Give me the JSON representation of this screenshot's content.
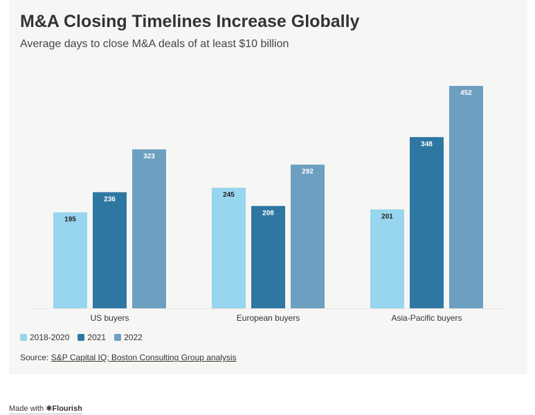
{
  "title": "M&A Closing Timelines Increase Globally",
  "subtitle": "Average days to close M&A deals of at least $10 billion",
  "source": {
    "prefix": "Source: ",
    "link_text": "S&P Capital IQ; Boston Consulting Group analysis"
  },
  "credit": {
    "prefix": "Made with ",
    "brand": "✱Flourish"
  },
  "colors": {
    "2018-2020": "#98d5ee",
    "2021": "#2f77a3",
    "2022": "#6c9fc0"
  },
  "chart_data": {
    "type": "bar",
    "categories": [
      "US buyers",
      "European buyers",
      "Asia-Pacific buyers"
    ],
    "series": [
      {
        "name": "2018-2020",
        "values": [
          195,
          245,
          201
        ]
      },
      {
        "name": "2021",
        "values": [
          236,
          208,
          348
        ]
      },
      {
        "name": "2022",
        "values": [
          323,
          292,
          452
        ]
      }
    ],
    "ylim": [
      0,
      452
    ],
    "grid": false,
    "legend": "bottom-left",
    "title": "M&A Closing Timelines Increase Globally",
    "subtitle": "Average days to close M&A deals of at least $10 billion"
  }
}
